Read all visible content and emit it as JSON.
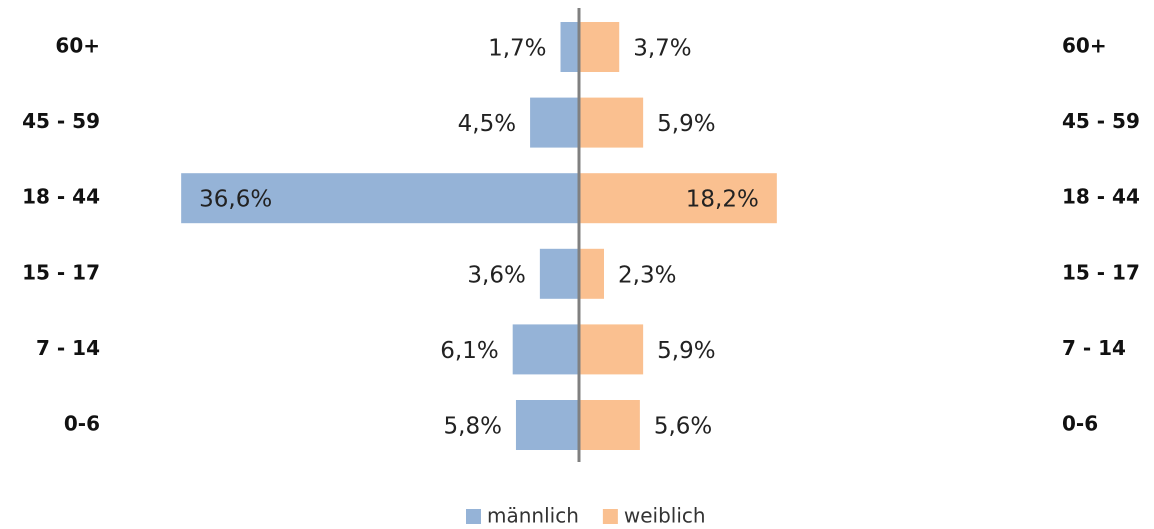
{
  "chart_data": {
    "type": "pyramid",
    "categories": [
      "60+",
      "45 - 59",
      "18 - 44",
      "15 - 17",
      "7 - 14",
      "0-6"
    ],
    "series": [
      {
        "name": "männlich",
        "color": "#95b3d7",
        "values": [
          1.7,
          4.5,
          36.6,
          3.6,
          6.1,
          5.8
        ],
        "value_labels": [
          "1,7%",
          "4,5%",
          "36,6%",
          "3,6%",
          "6,1%",
          "5,8%"
        ]
      },
      {
        "name": "weiblich",
        "color": "#fac090",
        "values": [
          3.7,
          5.9,
          18.2,
          2.3,
          5.9,
          5.6
        ],
        "value_labels": [
          "3,7%",
          "5,9%",
          "18,2%",
          "2,3%",
          "5,9%",
          "5,6%"
        ]
      }
    ]
  }
}
